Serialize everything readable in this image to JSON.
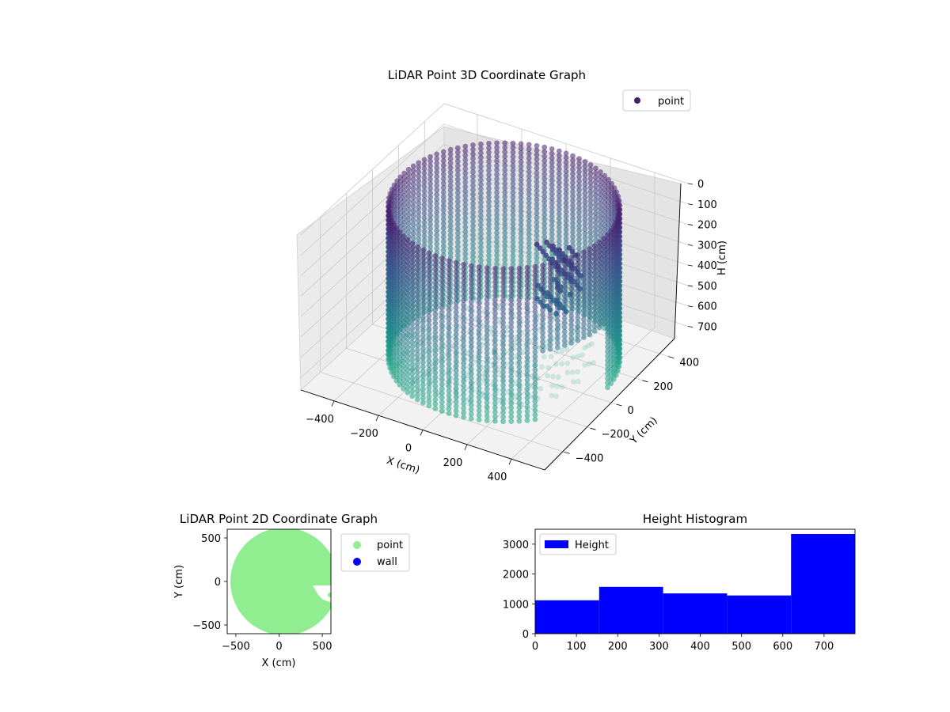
{
  "chart_data": [
    {
      "type": "scatter",
      "projection": "3d",
      "title": "LiDAR Point 3D Coordinate Graph",
      "xlabel": "X (cm)",
      "ylabel": "Y (cm)",
      "zlabel": "H (cm)",
      "xticks": [
        "−400",
        "−200",
        "0",
        "200",
        "400"
      ],
      "yticks": [
        "−400",
        "−200",
        "0",
        "200",
        "400"
      ],
      "zticks": [
        "0",
        "100",
        "200",
        "300",
        "400",
        "500",
        "600",
        "700"
      ],
      "xlim": [
        -550,
        550
      ],
      "ylim": [
        -550,
        550
      ],
      "zlim": [
        0,
        760
      ],
      "z_axis_inverted": true,
      "colormap": "viridis",
      "legend": {
        "entries": [
          "point"
        ],
        "position": "top-right",
        "marker_color": "#481f70"
      },
      "shape": "cylindrical wall of points, radius approx. 450 cm, heights 0 to 760 cm, with a cluster of points inside near x 150 to 300, y 0 to 150",
      "grid": true
    },
    {
      "type": "scatter",
      "title": "LiDAR Point 2D Coordinate Graph",
      "xlabel": "X (cm)",
      "ylabel": "Y (cm)",
      "xticks": [
        "−500",
        "0",
        "500"
      ],
      "yticks": [
        "500",
        "0",
        "−500"
      ],
      "xlim": [
        -600,
        600
      ],
      "ylim": [
        -600,
        600
      ],
      "series": [
        {
          "name": "point",
          "color": "#90ee90",
          "shape": "filled disc radius approx. 500 cm centred near (100, -50) with a notch near (400, -50)"
        },
        {
          "name": "wall",
          "color": "#0000ff"
        }
      ],
      "legend": {
        "position": "outside-right"
      }
    },
    {
      "type": "bar",
      "title": "Height Histogram",
      "bin_edges": [
        0,
        155,
        310,
        465,
        620,
        775
      ],
      "values": [
        1120,
        1570,
        1350,
        1280,
        3340
      ],
      "color": "#0000ff",
      "xticks": [
        "0",
        "100",
        "200",
        "300",
        "400",
        "500",
        "600",
        "700"
      ],
      "yticks": [
        "0",
        "1000",
        "2000",
        "3000"
      ],
      "xlim": [
        0,
        775
      ],
      "ylim": [
        0,
        3500
      ],
      "legend": {
        "entries": [
          "Height"
        ],
        "position": "top-left"
      }
    }
  ]
}
